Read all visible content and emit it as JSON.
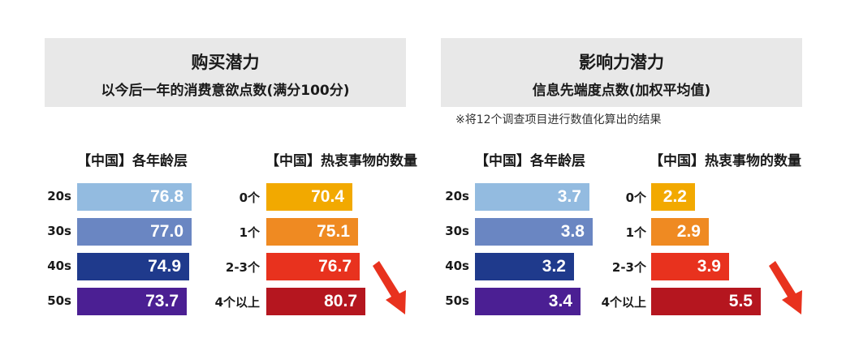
{
  "note": "※将12个调查项目进行数值化算出的结果",
  "colors": {
    "age": [
      "#93bbe0",
      "#6a86c2",
      "#1f3a8c",
      "#4b1f93"
    ],
    "count": [
      "#f2a900",
      "#ef8a22",
      "#e8321e",
      "#b5161f"
    ],
    "header_bg": "#e8e8e8",
    "arrow": "#e8321e"
  },
  "chart_data": [
    {
      "type": "bar",
      "panel_title": "购买潜力",
      "panel_subtitle": "以今后一年的消费意欲点数(满分100分)",
      "title": "【中国】各年龄层",
      "categories": [
        "20s",
        "30s",
        "40s",
        "50s"
      ],
      "values": [
        76.8,
        77.0,
        74.9,
        73.7
      ],
      "value_labels": [
        "76.8",
        "77.0",
        "74.9",
        "73.7"
      ]
    },
    {
      "type": "bar",
      "title": "【中国】热衷事物的数量",
      "categories": [
        "0个",
        "1个",
        "2-3个",
        "4个以上"
      ],
      "values": [
        70.4,
        75.1,
        76.7,
        80.7
      ],
      "value_labels": [
        "70.4",
        "75.1",
        "76.7",
        "80.7"
      ]
    },
    {
      "type": "bar",
      "panel_title": "影响力潜力",
      "panel_subtitle": "信息先端度点数(加权平均值)",
      "title": "【中国】各年龄层",
      "categories": [
        "20s",
        "30s",
        "40s",
        "50s"
      ],
      "values": [
        3.7,
        3.8,
        3.2,
        3.4
      ],
      "value_labels": [
        "3.7",
        "3.8",
        "3.2",
        "3.4"
      ]
    },
    {
      "type": "bar",
      "title": "【中国】热衷事物的数量",
      "categories": [
        "0个",
        "1个",
        "2-3个",
        "4个以上"
      ],
      "values": [
        2.2,
        2.9,
        3.9,
        5.5
      ],
      "value_labels": [
        "2.2",
        "2.9",
        "3.9",
        "5.5"
      ]
    }
  ]
}
